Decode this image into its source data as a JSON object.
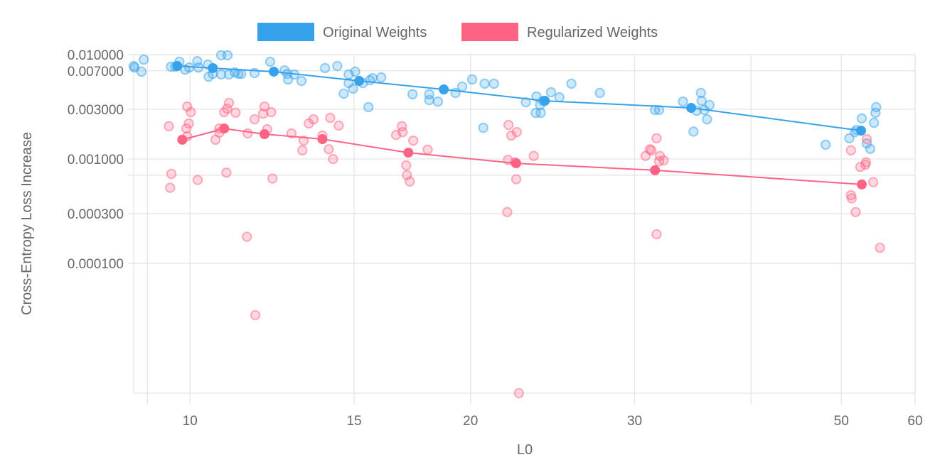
{
  "chart_data": {
    "type": "scatter",
    "title": "",
    "xlabel": "L0",
    "ylabel": "Cross-Entropy Loss Increase",
    "x_scale": "log",
    "y_scale": "log",
    "xlim": [
      8.7,
      60
    ],
    "ylim": [
      5.7e-06,
      0.01
    ],
    "x_ticks": [
      {
        "value": 9,
        "label": ""
      },
      {
        "value": 10,
        "label": "10"
      },
      {
        "value": 15,
        "label": "15"
      },
      {
        "value": 20,
        "label": "20"
      },
      {
        "value": 30,
        "label": "30"
      },
      {
        "value": 40,
        "label": ""
      },
      {
        "value": 50,
        "label": "50"
      },
      {
        "value": 60,
        "label": "60"
      }
    ],
    "y_ticks": [
      {
        "value": 0.01,
        "label": "0.010000"
      },
      {
        "value": 0.007,
        "label": "0.007000"
      },
      {
        "value": 0.003,
        "label": "0.003000"
      },
      {
        "value": 0.001,
        "label": "0.001000"
      },
      {
        "value": 0.0007,
        "label": ""
      },
      {
        "value": 0.0003,
        "label": "0.000300"
      },
      {
        "value": 0.0001,
        "label": "0.000100"
      }
    ],
    "grid": true,
    "legend_position": "top-center",
    "series": [
      {
        "name": "Original Weights",
        "color": "#36a2eb",
        "points": [
          [
            8.7,
            0.00778
          ],
          [
            8.72,
            0.00753
          ],
          [
            8.87,
            0.00687
          ],
          [
            8.92,
            0.00896
          ],
          [
            9.54,
            0.00767
          ],
          [
            9.64,
            0.00767
          ],
          [
            9.74,
            0.00855
          ],
          [
            9.88,
            0.00718
          ],
          [
            9.98,
            0.00753
          ],
          [
            10.18,
            0.00868
          ],
          [
            10.21,
            0.00753
          ],
          [
            10.45,
            0.00803
          ],
          [
            10.47,
            0.00615
          ],
          [
            10.58,
            0.00655
          ],
          [
            10.8,
            0.00986
          ],
          [
            10.8,
            0.00646
          ],
          [
            10.97,
            0.00986
          ],
          [
            11.01,
            0.00646
          ],
          [
            11.17,
            0.00676
          ],
          [
            11.27,
            0.00655
          ],
          [
            11.35,
            0.00655
          ],
          [
            11.73,
            0.00666
          ],
          [
            12.19,
            0.00855
          ],
          [
            12.63,
            0.00707
          ],
          [
            12.72,
            0.00655
          ],
          [
            12.74,
            0.00578
          ],
          [
            12.94,
            0.00646
          ],
          [
            13.17,
            0.0056
          ],
          [
            13.96,
            0.00743
          ],
          [
            14.39,
            0.00778
          ],
          [
            14.62,
            0.00423
          ],
          [
            14.8,
            0.00646
          ],
          [
            14.8,
            0.00534
          ],
          [
            14.96,
            0.00472
          ],
          [
            15.04,
            0.00687
          ],
          [
            15.33,
            0.00534
          ],
          [
            15.54,
            0.00314
          ],
          [
            15.6,
            0.00569
          ],
          [
            15.7,
            0.00596
          ],
          [
            16.04,
            0.00605
          ],
          [
            17.33,
            0.00417
          ],
          [
            18.06,
            0.00417
          ],
          [
            18.06,
            0.00367
          ],
          [
            18.45,
            0.00355
          ],
          [
            19.27,
            0.0043
          ],
          [
            19.59,
            0.00494
          ],
          [
            20.08,
            0.00578
          ],
          [
            20.64,
            0.00199
          ],
          [
            20.71,
            0.00527
          ],
          [
            21.19,
            0.00527
          ],
          [
            22.93,
            0.0035
          ],
          [
            23.5,
            0.00277
          ],
          [
            23.54,
            0.00397
          ],
          [
            23.75,
            0.00329
          ],
          [
            23.79,
            0.00277
          ],
          [
            23.92,
            0.00361
          ],
          [
            24.4,
            0.00436
          ],
          [
            24.91,
            0.0039
          ],
          [
            25.66,
            0.00527
          ],
          [
            27.53,
            0.0043
          ],
          [
            31.55,
            0.00295
          ],
          [
            31.87,
            0.00295
          ],
          [
            33.81,
            0.00355
          ],
          [
            34.7,
            0.00183
          ],
          [
            34.97,
            0.0029
          ],
          [
            35.34,
            0.0043
          ],
          [
            35.4,
            0.00361
          ],
          [
            35.64,
            0.00295
          ],
          [
            35.88,
            0.0024
          ],
          [
            36.1,
            0.00329
          ],
          [
            48.1,
            0.00137
          ],
          [
            51.0,
            0.00158
          ],
          [
            51.7,
            0.00181
          ],
          [
            51.9,
            0.0019
          ],
          [
            52.59,
            0.00245
          ],
          [
            53.25,
            0.00141
          ],
          [
            53.7,
            0.00125
          ],
          [
            54.2,
            0.00222
          ],
          [
            54.4,
            0.00277
          ],
          [
            54.5,
            0.00314
          ]
        ],
        "mean_line": [
          [
            9.69,
            0.00778
          ],
          [
            10.58,
            0.00743
          ],
          [
            12.3,
            0.00687
          ],
          [
            15.19,
            0.0056
          ],
          [
            18.72,
            0.00464
          ],
          [
            24.03,
            0.00361
          ],
          [
            34.5,
            0.00309
          ],
          [
            52.5,
            0.00187
          ]
        ]
      },
      {
        "name": "Regularized Weights",
        "color": "#ff6384",
        "points": [
          [
            9.49,
            0.00206
          ],
          [
            9.52,
            0.00053
          ],
          [
            9.55,
            0.00072
          ],
          [
            9.91,
            0.00196
          ],
          [
            9.93,
            0.00318
          ],
          [
            9.97,
            0.00219
          ],
          [
            9.93,
            0.00165
          ],
          [
            10.02,
            0.00281
          ],
          [
            10.19,
            0.00063
          ],
          [
            10.65,
            0.00153
          ],
          [
            10.75,
            0.00179
          ],
          [
            10.75,
            0.00196
          ],
          [
            10.88,
            0.00281
          ],
          [
            10.94,
            0.00074
          ],
          [
            10.96,
            0.00304
          ],
          [
            11.01,
            0.00345
          ],
          [
            11.19,
            0.00278
          ],
          [
            11.51,
            0.00018
          ],
          [
            11.53,
            0.00176
          ],
          [
            11.73,
            0.0024
          ],
          [
            11.75,
            3.19e-05
          ],
          [
            11.98,
            0.00272
          ],
          [
            12.02,
            0.00318
          ],
          [
            12.1,
            0.00193
          ],
          [
            12.22,
            0.00281
          ],
          [
            12.26,
            0.00065
          ],
          [
            12.85,
            0.00176
          ],
          [
            13.2,
            0.00121
          ],
          [
            13.24,
            0.0015
          ],
          [
            13.41,
            0.00219
          ],
          [
            13.57,
            0.0024
          ],
          [
            13.87,
            0.00168
          ],
          [
            14.09,
            0.00124
          ],
          [
            14.14,
            0.00248
          ],
          [
            14.24,
            0.001
          ],
          [
            14.44,
            0.00209
          ],
          [
            16.64,
            0.0017
          ],
          [
            16.88,
            0.00206
          ],
          [
            16.91,
            0.00181
          ],
          [
            17.06,
            0.00087
          ],
          [
            17.09,
            0.0007
          ],
          [
            17.21,
            0.00061
          ],
          [
            17.36,
            0.0015
          ],
          [
            17.99,
            0.00123
          ],
          [
            21.9,
            0.00031
          ],
          [
            21.94,
            0.00098
          ],
          [
            21.97,
            0.00212
          ],
          [
            22.12,
            0.00168
          ],
          [
            22.31,
            0.00093
          ],
          [
            22.39,
            0.00064
          ],
          [
            22.42,
            0.00181
          ],
          [
            22.54,
            5.7e-06
          ],
          [
            23.38,
            0.00107
          ],
          [
            30.82,
            0.00107
          ],
          [
            31.15,
            0.00124
          ],
          [
            31.27,
            0.00121
          ],
          [
            31.67,
            0.00158
          ],
          [
            31.67,
            0.00019
          ],
          [
            31.87,
            0.00095
          ],
          [
            31.93,
            0.00107
          ],
          [
            32.23,
            0.00097
          ],
          [
            51.2,
            0.00121
          ],
          [
            51.2,
            0.00045
          ],
          [
            51.3,
            0.00042
          ],
          [
            51.8,
            0.00031
          ],
          [
            52.4,
            0.00084
          ],
          [
            53.06,
            0.00088
          ],
          [
            53.15,
            0.00093
          ],
          [
            53.25,
            0.00155
          ],
          [
            54.1,
            0.0006
          ],
          [
            55.0,
            0.000141
          ]
        ],
        "mean_line": [
          [
            9.81,
            0.00153
          ],
          [
            10.88,
            0.00196
          ],
          [
            12.02,
            0.00173
          ],
          [
            13.87,
            0.00155
          ],
          [
            17.15,
            0.00115
          ],
          [
            22.39,
            0.00091
          ],
          [
            31.55,
            0.00078
          ],
          [
            52.59,
            0.00057
          ]
        ]
      }
    ]
  }
}
